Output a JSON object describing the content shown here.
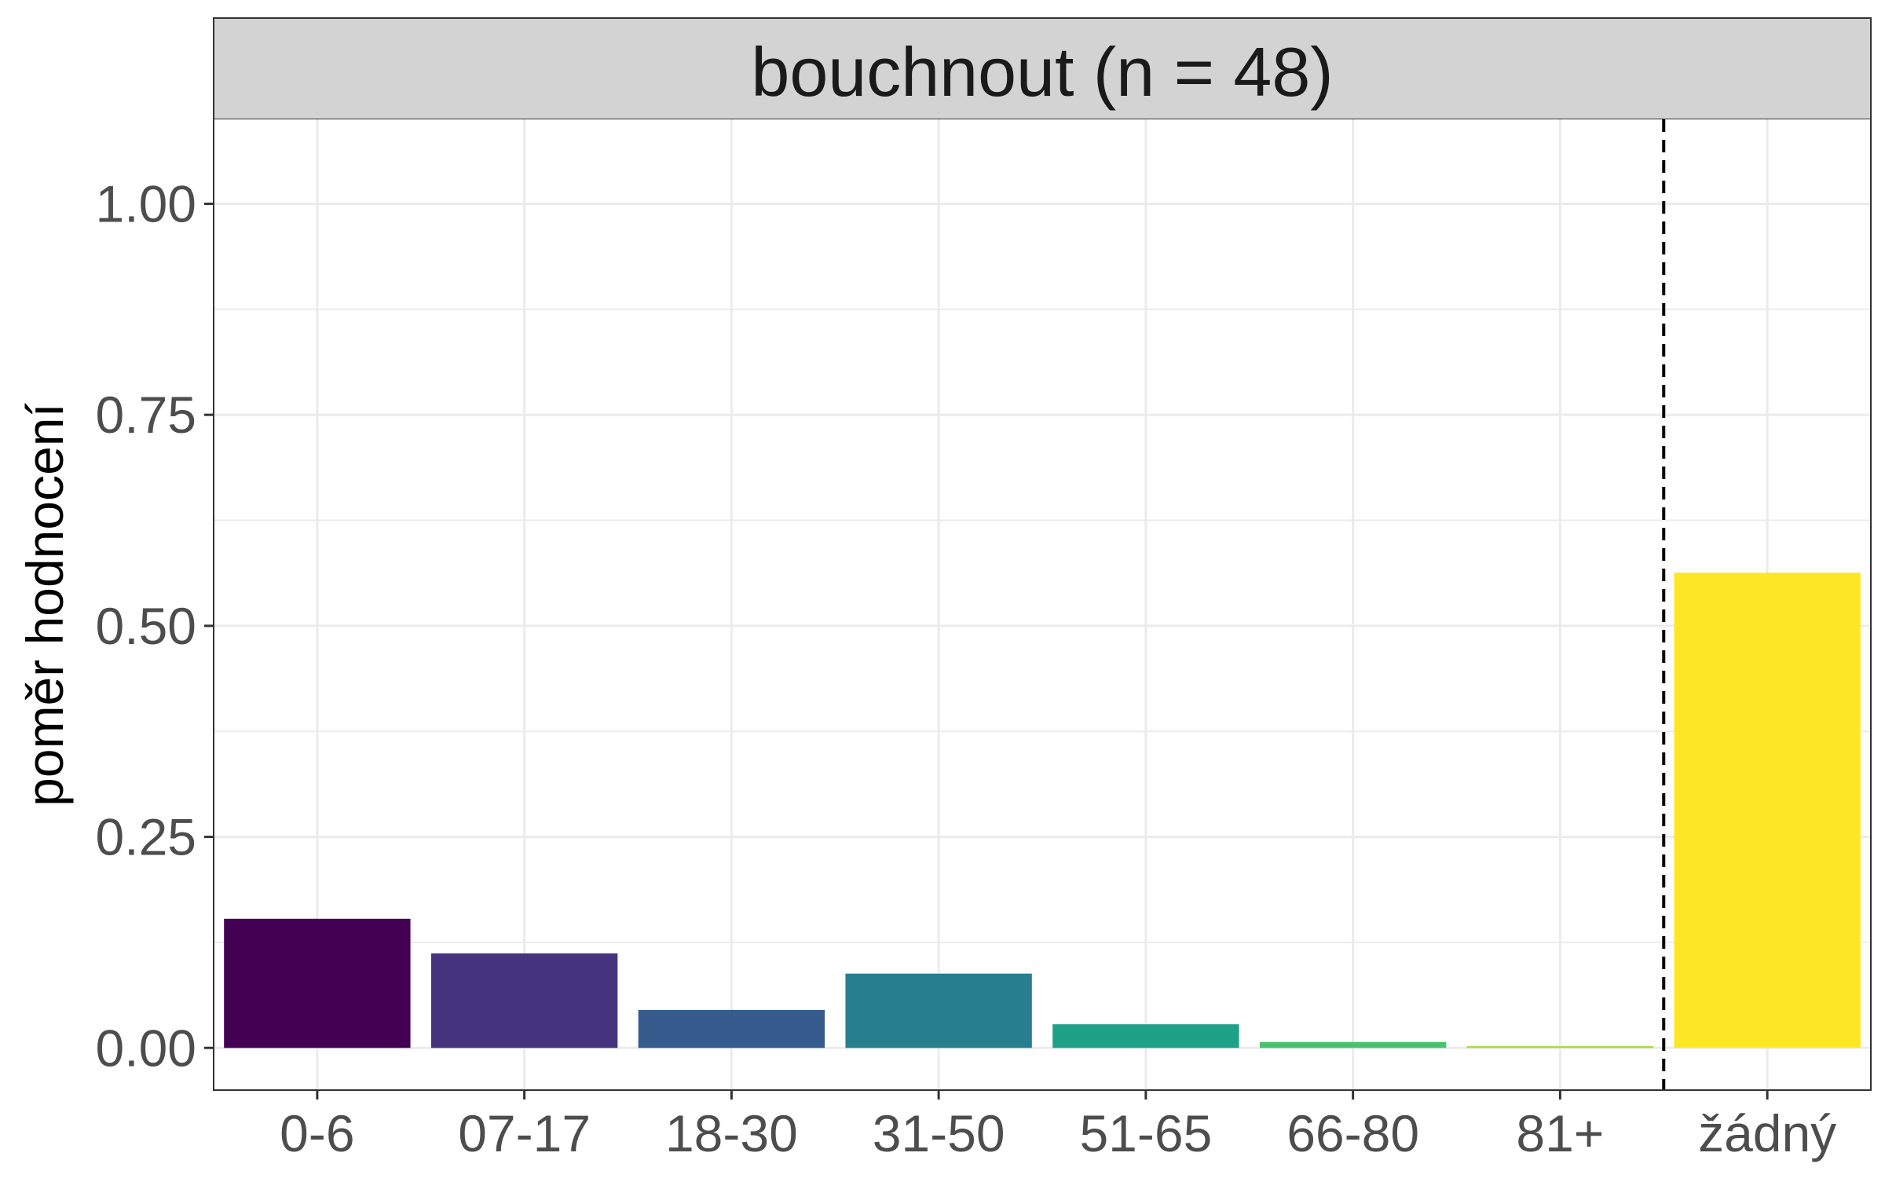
{
  "chart_data": {
    "type": "bar",
    "title": "bouchnout (n = 48)",
    "xlabel": "",
    "ylabel": "poměr hodnocení",
    "categories": [
      "0-6",
      "07-17",
      "18-30",
      "31-50",
      "51-65",
      "66-80",
      "81+",
      "žádný"
    ],
    "values": [
      0.153,
      0.112,
      0.045,
      0.088,
      0.028,
      0.007,
      0.002,
      0.563
    ],
    "colors": [
      "#440154",
      "#46337E",
      "#365C8D",
      "#277F8E",
      "#1FA187",
      "#4AC16D",
      "#9FDA3A",
      "#FDE725"
    ],
    "ylim": [
      -0.05,
      1.1
    ],
    "yticks": [
      "0.00",
      "0.25",
      "0.50",
      "0.75",
      "1.00"
    ],
    "ytick_values": [
      0,
      0.25,
      0.5,
      0.75,
      1.0
    ],
    "reference_line": {
      "between": [
        "81+",
        "žádný"
      ],
      "style": "dashed"
    },
    "grid": true,
    "legend": "none"
  }
}
